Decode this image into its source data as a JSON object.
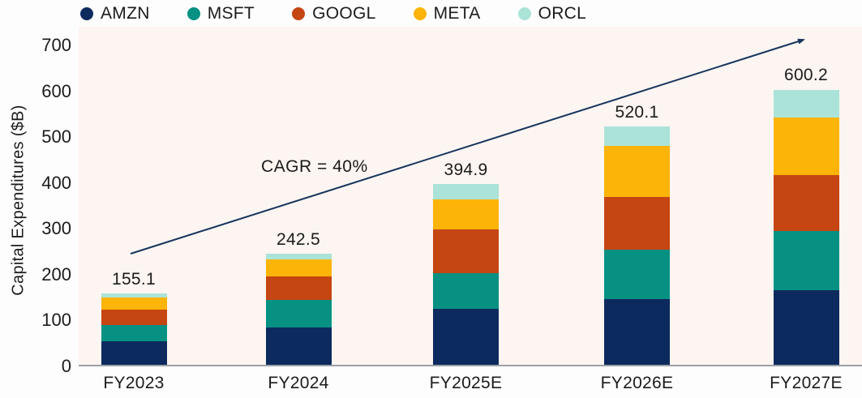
{
  "colors": {
    "plot_background": "#fdf5f2",
    "axis_line": "#9ca1a7",
    "arrow": "#16355c",
    "text": "#1b1b1b"
  },
  "chart_data": {
    "type": "bar",
    "stacked": true,
    "title": "",
    "xlabel": "",
    "ylabel": "Capital Expenditures ($B)",
    "ylim": [
      0,
      700
    ],
    "y_ticks": [
      0,
      100,
      200,
      300,
      400,
      500,
      600,
      700
    ],
    "grid": false,
    "legend_position": "top-left",
    "categories": [
      "FY2023",
      "FY2024",
      "FY2025E",
      "FY2026E",
      "FY2027E"
    ],
    "series": [
      {
        "name": "AMZN",
        "color": "#0d2a5e",
        "values": [
          52.0,
          82.0,
          122.0,
          142.5,
          162.5
        ]
      },
      {
        "name": "MSFT",
        "color": "#069183",
        "values": [
          35.2,
          59.0,
          77.5,
          108.0,
          129.5
        ]
      },
      {
        "name": "GOOGL",
        "color": "#c54513",
        "values": [
          33.9,
          52.0,
          94.9,
          116.0,
          122.5
        ]
      },
      {
        "name": "META",
        "color": "#fdb408",
        "values": [
          25.5,
          37.0,
          66.5,
          111.5,
          124.5
        ]
      },
      {
        "name": "ORCL",
        "color": "#abe3d8",
        "values": [
          8.5,
          12.5,
          34.0,
          42.1,
          61.2
        ]
      }
    ],
    "totals": [
      "155.1",
      "242.5",
      "394.9",
      "520.1",
      "600.2"
    ],
    "annotation": {
      "text": "CAGR = 40%"
    },
    "segment_values_estimated": true
  }
}
